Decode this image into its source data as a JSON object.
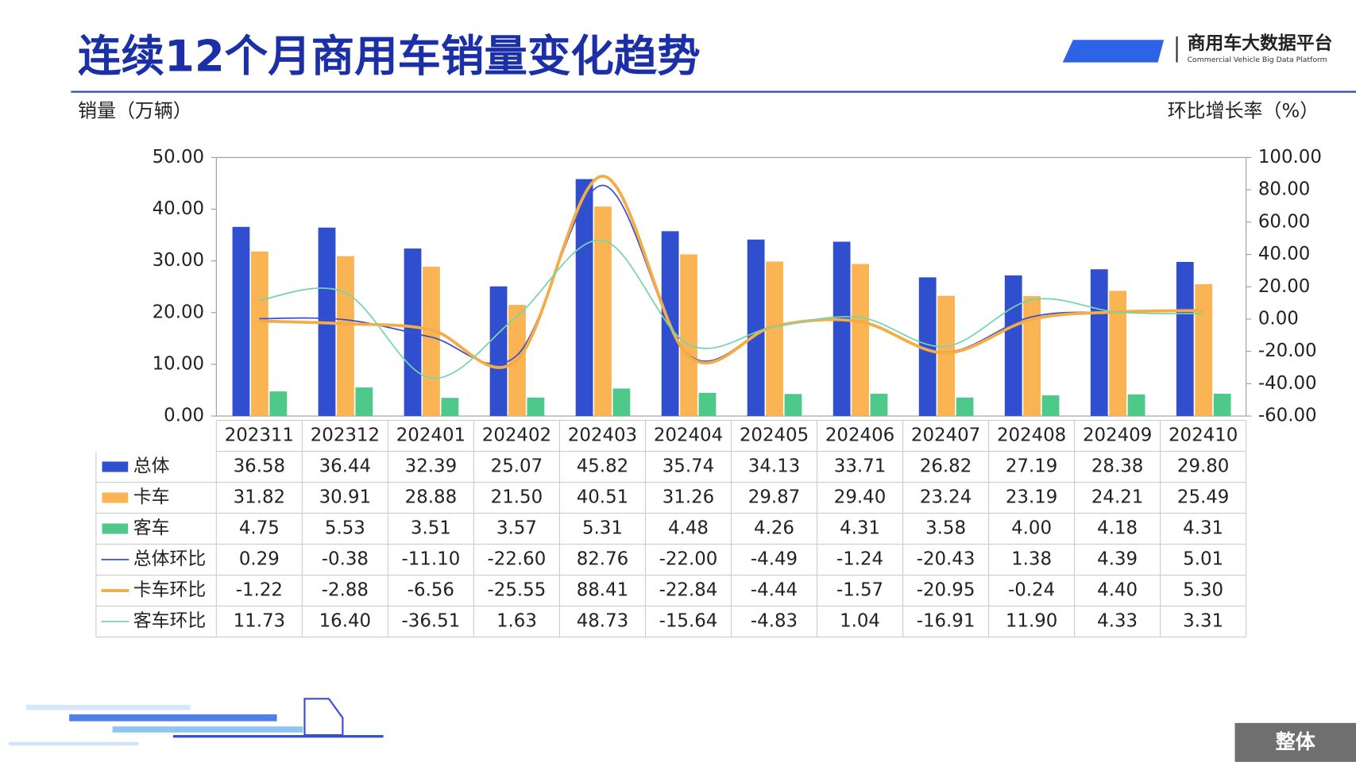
{
  "header": {
    "logo_title": "商用车大数据平台",
    "logo_subtitle": "Commercial Vehicle Big Data Platform"
  },
  "footer": {
    "button": "整体"
  },
  "chart_data": {
    "type": "bar",
    "title": "连续12个月商用车销量变化趋势",
    "y_label": "销量（万辆）",
    "y2_label": "环比增长率（%）",
    "categories": [
      "202311",
      "202312",
      "202401",
      "202402",
      "202403",
      "202404",
      "202405",
      "202406",
      "202407",
      "202408",
      "202409",
      "202410"
    ],
    "ylim": [
      0,
      50
    ],
    "yticks": [
      {
        "value": 0,
        "label": "0.00"
      },
      {
        "value": 10,
        "label": "10.00"
      },
      {
        "value": 20,
        "label": "20.00"
      },
      {
        "value": 30,
        "label": "30.00"
      },
      {
        "value": 40,
        "label": "40.00"
      },
      {
        "value": 50,
        "label": "50.00"
      }
    ],
    "y2lim": [
      -60,
      100
    ],
    "y2ticks": [
      {
        "value": -60,
        "label": "-60.00"
      },
      {
        "value": -40,
        "label": "-40.00"
      },
      {
        "value": -20,
        "label": "-20.00"
      },
      {
        "value": 0,
        "label": "0.00"
      },
      {
        "value": 20,
        "label": "20.00"
      },
      {
        "value": 40,
        "label": "40.00"
      },
      {
        "value": 60,
        "label": "60.00"
      },
      {
        "value": 80,
        "label": "80.00"
      },
      {
        "value": 100,
        "label": "100.00"
      }
    ],
    "grid": false,
    "series": [
      {
        "name": "总体",
        "color": "#2f4fcf",
        "values": [
          36.58,
          36.44,
          32.39,
          25.07,
          45.82,
          35.74,
          34.13,
          33.71,
          26.82,
          27.19,
          28.38,
          29.8
        ],
        "value_labels": [
          "36.58",
          "36.44",
          "32.39",
          "25.07",
          "45.82",
          "35.74",
          "34.13",
          "33.71",
          "26.82",
          "27.19",
          "28.38",
          "29.80"
        ]
      },
      {
        "name": "卡车",
        "color": "#fab453",
        "values": [
          31.82,
          30.91,
          28.88,
          21.5,
          40.51,
          31.26,
          29.87,
          29.4,
          23.24,
          23.19,
          24.21,
          25.49
        ],
        "value_labels": [
          "31.82",
          "30.91",
          "28.88",
          "21.50",
          "40.51",
          "31.26",
          "29.87",
          "29.40",
          "23.24",
          "23.19",
          "24.21",
          "25.49"
        ]
      },
      {
        "name": "客车",
        "color": "#4fc98a",
        "values": [
          4.75,
          5.53,
          3.51,
          3.57,
          5.31,
          4.48,
          4.26,
          4.31,
          3.58,
          4,
          4.18,
          4.31
        ],
        "value_labels": [
          "4.75",
          "5.53",
          "3.51",
          "3.57",
          "5.31",
          "4.48",
          "4.26",
          "4.31",
          "3.58",
          "4.00",
          "4.18",
          "4.31"
        ]
      },
      {
        "name": "总体环比",
        "color": "#3a4fd0",
        "axis": "y2",
        "values": [
          0.29,
          -0.38,
          -11.1,
          -22.6,
          82.76,
          -22,
          -4.49,
          -1.24,
          -20.43,
          1.38,
          4.39,
          5.01
        ],
        "value_labels": [
          "0.29",
          "-0.38",
          "-11.10",
          "-22.60",
          "82.76",
          "-22.00",
          "-4.49",
          "-1.24",
          "-20.43",
          "1.38",
          "4.39",
          "5.01"
        ]
      },
      {
        "name": "卡车环比",
        "color": "#f6ac45",
        "axis": "y2",
        "values": [
          -1.22,
          -2.88,
          -6.56,
          -25.55,
          88.41,
          -22.84,
          -4.44,
          -1.57,
          -20.95,
          -0.24,
          4.4,
          5.3
        ],
        "value_labels": [
          "-1.22",
          "-2.88",
          "-6.56",
          "-25.55",
          "88.41",
          "-22.84",
          "-4.44",
          "-1.57",
          "-20.95",
          "-0.24",
          "4.40",
          "5.30"
        ]
      },
      {
        "name": "客车环比",
        "color": "#74d6ad",
        "axis": "y2",
        "values": [
          11.73,
          16.4,
          -36.51,
          1.63,
          48.73,
          -15.64,
          -4.83,
          1.04,
          -16.91,
          11.9,
          4.33,
          3.31
        ],
        "value_labels": [
          "11.73",
          "16.40",
          "-36.51",
          "1.63",
          "48.73",
          "-15.64",
          "-4.83",
          "1.04",
          "-16.91",
          "11.90",
          "4.33",
          "3.31"
        ]
      }
    ]
  }
}
